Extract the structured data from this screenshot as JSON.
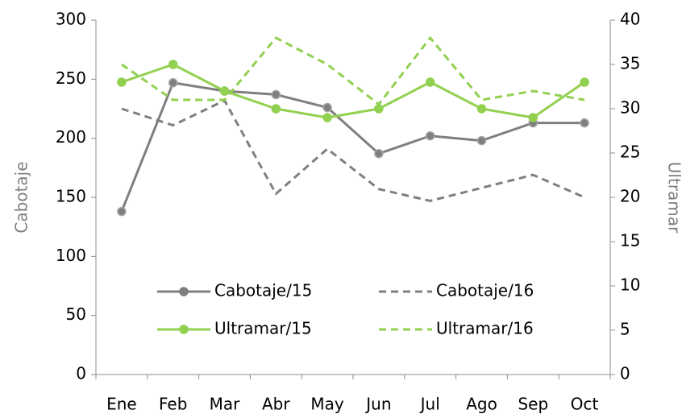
{
  "chart_data": {
    "type": "line",
    "categories": [
      "Ene",
      "Feb",
      "Mar",
      "Abr",
      "May",
      "Jun",
      "Jul",
      "Ago",
      "Sep",
      "Oct"
    ],
    "ylabel": "Cabotaje",
    "y2label": "Ultramar",
    "ylim": [
      0,
      300
    ],
    "yticks": [
      0,
      50,
      100,
      150,
      200,
      250,
      300
    ],
    "y2lim": [
      0,
      40
    ],
    "y2ticks": [
      0,
      5,
      10,
      15,
      20,
      25,
      30,
      35,
      40
    ],
    "series": [
      {
        "name": "Cabotaje/15",
        "color": "#7f7f7f",
        "dash": false,
        "markers": true,
        "values": [
          138,
          247,
          240,
          237,
          226,
          187,
          202,
          198,
          213,
          213
        ]
      },
      {
        "name": "Cabotaje/16",
        "color": "#7f7f7f",
        "dash": true,
        "markers": false,
        "values": [
          225,
          211,
          232,
          153,
          191,
          157,
          147,
          158,
          169,
          150
        ]
      },
      {
        "name": "Ultramar/15",
        "color": "#92d050",
        "dash": false,
        "markers": true,
        "axis": "y2",
        "values": [
          33,
          35,
          32,
          30,
          29,
          30,
          33,
          30,
          29,
          33
        ]
      },
      {
        "name": "Ultramar/16",
        "color": "#92d050",
        "dash": true,
        "markers": false,
        "axis": "y2",
        "values": [
          35,
          31,
          31,
          38,
          35,
          30.5,
          38,
          31,
          32,
          31
        ]
      }
    ]
  }
}
